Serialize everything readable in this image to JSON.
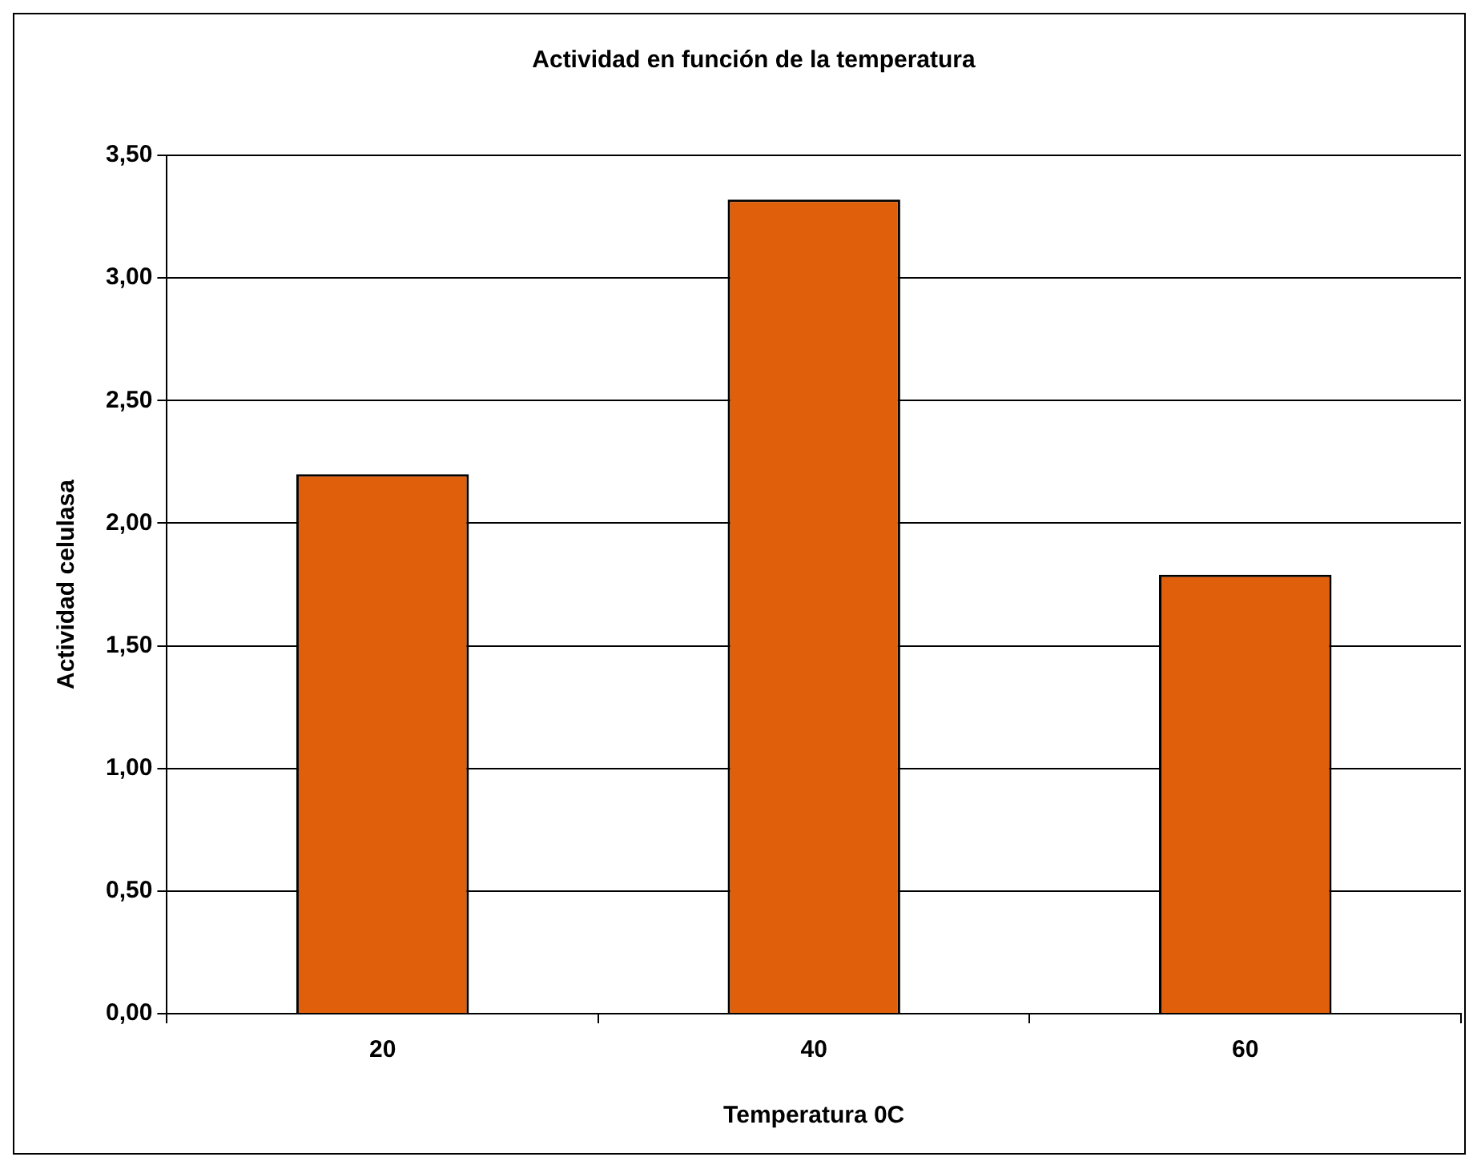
{
  "chart_data": {
    "type": "bar",
    "title": "Actividad en función de la temperatura",
    "xlabel": "Temperatura 0C",
    "ylabel": "Actividad celulasa",
    "categories": [
      "20",
      "40",
      "60"
    ],
    "values": [
      2.2,
      3.32,
      1.79
    ],
    "color": "#e05f0a",
    "ylim": [
      0,
      3.5
    ],
    "yticks": [
      {
        "value": 0,
        "label": "0,00"
      },
      {
        "value": 0.5,
        "label": "0,50"
      },
      {
        "value": 1,
        "label": "1,00"
      },
      {
        "value": 1.5,
        "label": "1,50"
      },
      {
        "value": 2,
        "label": "2,00"
      },
      {
        "value": 2.5,
        "label": "2,50"
      },
      {
        "value": 3,
        "label": "3,00"
      },
      {
        "value": 3.5,
        "label": "3,50"
      }
    ],
    "grid": "y",
    "legend": false
  }
}
